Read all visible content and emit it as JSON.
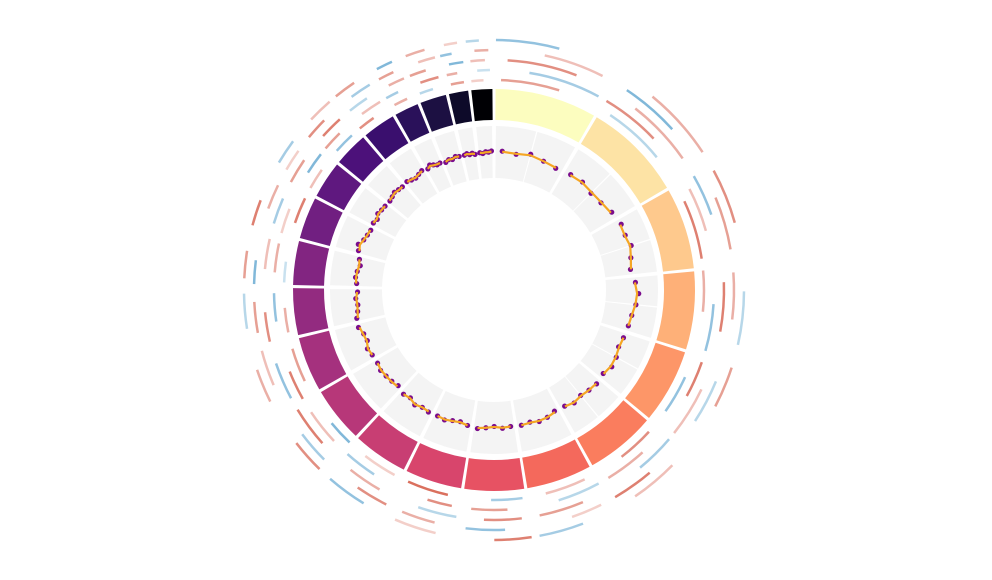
{
  "chart_data": {
    "type": "circos",
    "segments": {
      "values": [
        248,
        242,
        198,
        190,
        181,
        171,
        159,
        145,
        138,
        134,
        135,
        133,
        114,
        107,
        102,
        90,
        83,
        80,
        59,
        64,
        47,
        51
      ],
      "colors": [
        "#fcfdbf",
        "#fde3a5",
        "#fec98d",
        "#feb078",
        "#fd9668",
        "#fa7d5e",
        "#f4695c",
        "#e75263",
        "#d8456c",
        "#c83e73",
        "#b73779",
        "#a5317e",
        "#932b80",
        "#822581",
        "#711f81",
        "#5f187f",
        "#4c117a",
        "#3a0f6e",
        "#2a115a",
        "#1c1042",
        "#0d0a29",
        "#000004"
      ]
    },
    "xlim": [
      0,
      1
    ],
    "ylim": [
      0,
      1
    ],
    "scatter": {
      "color": "#7a0c8c",
      "x": [
        0.1,
        0.3,
        0.5,
        0.7,
        0.9
      ],
      "values": [
        [
          0.52,
          0.49,
          0.55,
          0.5,
          0.47
        ],
        [
          0.51,
          0.53,
          0.48,
          0.5,
          0.56
        ],
        [
          0.6,
          0.58,
          0.62,
          0.55,
          0.5
        ],
        [
          0.57,
          0.63,
          0.59,
          0.54,
          0.52
        ],
        [
          0.5,
          0.48,
          0.53,
          0.55,
          0.49
        ],
        [
          0.52,
          0.5,
          0.47,
          0.51,
          0.46
        ],
        [
          0.45,
          0.5,
          0.52,
          0.48,
          0.5
        ],
        [
          0.49,
          0.51,
          0.47,
          0.5,
          0.53
        ],
        [
          0.5,
          0.46,
          0.48,
          0.52,
          0.5
        ],
        [
          0.51,
          0.49,
          0.53,
          0.47,
          0.5
        ],
        [
          0.45,
          0.48,
          0.5,
          0.52,
          0.49
        ],
        [
          0.5,
          0.53,
          0.47,
          0.49,
          0.55
        ],
        [
          0.54,
          0.5,
          0.48,
          0.51,
          0.47
        ],
        [
          0.49,
          0.52,
          0.5,
          0.46,
          0.5
        ],
        [
          0.56,
          0.6,
          0.53,
          0.5,
          0.48
        ],
        [
          0.5,
          0.47,
          0.52,
          0.5,
          0.49
        ],
        [
          0.48,
          0.5,
          0.53,
          0.51,
          0.5
        ],
        [
          0.52,
          0.49,
          0.47,
          0.5,
          0.53
        ],
        [
          0.5,
          0.55,
          0.52,
          0.49,
          0.5
        ],
        [
          0.47,
          0.5,
          0.48,
          0.52,
          0.5
        ],
        [
          0.5,
          0.52,
          0.49,
          0.51,
          0.48
        ],
        [
          0.5,
          0.48,
          0.51,
          0.5,
          0.52
        ]
      ]
    },
    "line": {
      "color": "#f5a623",
      "x": [
        0.1,
        0.3,
        0.5,
        0.7,
        0.9
      ],
      "values": [
        [
          0.51,
          0.5,
          0.53,
          0.5,
          0.48
        ],
        [
          0.5,
          0.52,
          0.5,
          0.51,
          0.54
        ],
        [
          0.58,
          0.57,
          0.6,
          0.55,
          0.51
        ],
        [
          0.56,
          0.6,
          0.58,
          0.54,
          0.52
        ],
        [
          0.5,
          0.49,
          0.52,
          0.53,
          0.5
        ],
        [
          0.51,
          0.5,
          0.48,
          0.5,
          0.47
        ],
        [
          0.47,
          0.5,
          0.51,
          0.49,
          0.5
        ],
        [
          0.49,
          0.5,
          0.48,
          0.5,
          0.52
        ],
        [
          0.5,
          0.47,
          0.49,
          0.51,
          0.5
        ],
        [
          0.5,
          0.49,
          0.52,
          0.48,
          0.5
        ],
        [
          0.47,
          0.49,
          0.5,
          0.51,
          0.49
        ],
        [
          0.5,
          0.52,
          0.48,
          0.5,
          0.53
        ],
        [
          0.52,
          0.5,
          0.49,
          0.5,
          0.48
        ],
        [
          0.5,
          0.51,
          0.5,
          0.48,
          0.5
        ],
        [
          0.54,
          0.57,
          0.53,
          0.5,
          0.49
        ],
        [
          0.5,
          0.48,
          0.51,
          0.5,
          0.49
        ],
        [
          0.49,
          0.5,
          0.52,
          0.5,
          0.5
        ],
        [
          0.51,
          0.5,
          0.48,
          0.5,
          0.52
        ],
        [
          0.5,
          0.53,
          0.51,
          0.5,
          0.5
        ],
        [
          0.48,
          0.5,
          0.49,
          0.51,
          0.5
        ],
        [
          0.5,
          0.51,
          0.5,
          0.5,
          0.49
        ],
        [
          0.5,
          0.49,
          0.5,
          0.5,
          0.51
        ]
      ]
    },
    "colors": {
      "negative": "#4b9ac9",
      "positive": "#d6604d"
    },
    "vlim": [
      -1,
      1
    ],
    "tracks": [
      {
        "start": [
          0.05,
          0.1,
          0.2,
          0.0,
          0.3,
          0.1,
          0.15,
          0.05,
          0.2,
          0.1,
          0.0,
          0.25,
          0.1,
          0.05,
          0.3,
          0.1,
          0.2,
          0.0,
          0.15,
          0.1,
          0.2,
          0.05
        ],
        "end": [
          0.6,
          0.7,
          0.9,
          0.5,
          0.8,
          0.6,
          0.75,
          0.55,
          0.9,
          0.7,
          0.45,
          0.85,
          0.6,
          0.5,
          0.9,
          0.65,
          0.8,
          0.5,
          0.7,
          0.6,
          0.85,
          0.6
        ],
        "values": [
          0.6,
          -0.4,
          0.8,
          0.5,
          -0.6,
          0.7,
          0.4,
          -0.5,
          0.9,
          0.3,
          -0.7,
          0.6,
          0.5,
          -0.3,
          0.8,
          0.4,
          -0.6,
          0.7,
          0.5,
          -0.4,
          0.6,
          0.3
        ]
      },
      {
        "start": [
          0.3,
          0.0,
          0.1,
          0.4,
          0.05,
          0.35,
          0.0,
          0.3,
          0.1,
          0.4,
          0.2,
          0.0,
          0.35,
          0.25,
          0.0,
          0.4,
          0.05,
          0.3,
          0.0,
          0.25,
          0.1,
          0.35
        ],
        "end": [
          0.95,
          0.55,
          0.6,
          0.95,
          0.5,
          0.9,
          0.6,
          0.85,
          0.5,
          0.95,
          0.8,
          0.5,
          0.9,
          0.85,
          0.55,
          0.95,
          0.6,
          0.9,
          0.5,
          0.9,
          0.6,
          0.9
        ],
        "values": [
          -0.5,
          0.7,
          0.4,
          -0.6,
          0.8,
          0.5,
          -0.4,
          0.6,
          0.7,
          -0.5,
          0.4,
          0.8,
          -0.6,
          0.5,
          0.3,
          -0.7,
          0.6,
          0.4,
          -0.5,
          0.7,
          0.5,
          -0.3
        ]
      },
      {
        "start": [
          0.1,
          0.25,
          0.0,
          0.15,
          0.35,
          0.0,
          0.3,
          0.1,
          0.0,
          0.2,
          0.3,
          0.1,
          0.0,
          0.3,
          0.15,
          0.0,
          0.25,
          0.1,
          0.3,
          0.0,
          0.3,
          0.1
        ],
        "end": [
          0.7,
          0.85,
          0.45,
          0.7,
          0.95,
          0.5,
          0.9,
          0.65,
          0.6,
          0.75,
          0.95,
          0.7,
          0.55,
          0.9,
          0.7,
          0.6,
          0.85,
          0.65,
          0.9,
          0.55,
          0.95,
          0.7
        ],
        "values": [
          0.7,
          0.5,
          -0.6,
          0.8,
          0.4,
          -0.5,
          0.6,
          0.7,
          -0.4,
          0.5,
          0.8,
          -0.6,
          0.7,
          0.4,
          -0.5,
          0.6,
          0.8,
          -0.4,
          0.5,
          0.6,
          -0.7,
          0.4
        ]
      },
      {
        "start": [
          0.4,
          0.1,
          0.3,
          0.05,
          0.2,
          0.45,
          0.1,
          0.35,
          0.3,
          0.0,
          0.1,
          0.4,
          0.2,
          0.0,
          0.4,
          0.2,
          0.0,
          0.35,
          0.1,
          0.4,
          0.0,
          0.3
        ],
        "end": [
          0.9,
          0.6,
          0.85,
          0.55,
          0.7,
          0.95,
          0.5,
          0.9,
          0.8,
          0.5,
          0.6,
          0.95,
          0.75,
          0.45,
          0.9,
          0.7,
          0.55,
          0.9,
          0.65,
          0.95,
          0.5,
          0.85
        ],
        "values": [
          0.4,
          -0.7,
          0.6,
          0.5,
          -0.4,
          0.8,
          0.3,
          -0.6,
          0.5,
          0.7,
          -0.5,
          0.4,
          0.6,
          -0.7,
          0.5,
          0.3,
          0.7,
          -0.5,
          0.6,
          0.4,
          -0.6,
          0.5
        ]
      },
      {
        "start": [
          0.0,
          0.3,
          0.05,
          0.25,
          0.0,
          0.2,
          0.4,
          0.0,
          0.25,
          0.3,
          0.05,
          0.2,
          0.3,
          0.1,
          0.0,
          0.25,
          0.35,
          0.05,
          0.2,
          0.1,
          0.25,
          0.0
        ],
        "end": [
          0.5,
          0.9,
          0.6,
          0.8,
          0.45,
          0.75,
          0.95,
          0.5,
          0.85,
          0.9,
          0.55,
          0.7,
          0.9,
          0.6,
          0.5,
          0.8,
          0.95,
          0.6,
          0.75,
          0.7,
          0.8,
          0.5
        ],
        "values": [
          -0.6,
          0.5,
          0.7,
          -0.4,
          0.6,
          0.4,
          -0.5,
          0.8,
          0.3,
          -0.6,
          0.7,
          0.5,
          -0.4,
          0.6,
          0.8,
          -0.5,
          0.4,
          0.6,
          -0.7,
          0.5,
          0.3,
          -0.4
        ]
      }
    ]
  }
}
